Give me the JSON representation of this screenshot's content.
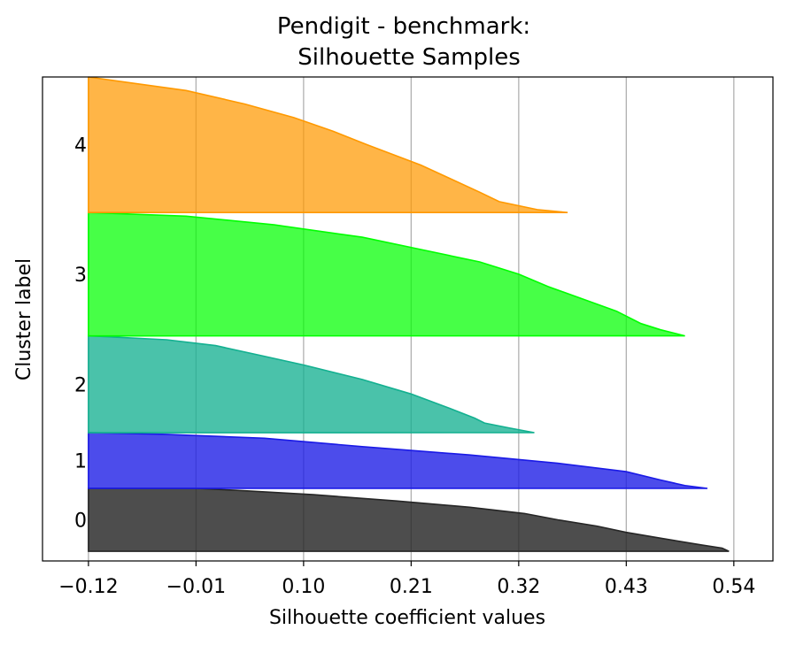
{
  "chart_data": {
    "type": "area",
    "title_line1": "Pendigit - benchmark:",
    "title_line2": "Silhouette Samples",
    "xlabel": "Silhouette coefficient values",
    "ylabel": "Cluster label",
    "x_ticks": [
      -0.12,
      -0.01,
      0.1,
      0.21,
      0.32,
      0.43,
      0.54
    ],
    "x_tick_labels": [
      "−0.12",
      "−0.01",
      "0.10",
      "0.21",
      "0.32",
      "0.43",
      "0.54"
    ],
    "xlim": [
      -0.167,
      0.58
    ],
    "grid": "x-axis vertical lines",
    "clusters": [
      {
        "label": "0",
        "color": "#262626",
        "fill_opacity": 0.82,
        "band": [
          0.02,
          0.15
        ],
        "profile": [
          [
            0,
            0.535
          ],
          [
            0.05,
            0.528
          ],
          [
            0.1,
            0.507
          ],
          [
            0.2,
            0.468
          ],
          [
            0.3,
            0.43
          ],
          [
            0.4,
            0.4
          ],
          [
            0.5,
            0.36
          ],
          [
            0.6,
            0.326
          ],
          [
            0.7,
            0.27
          ],
          [
            0.8,
            0.195
          ],
          [
            0.9,
            0.11
          ],
          [
            0.97,
            0.03
          ],
          [
            1,
            -0.01
          ]
        ]
      },
      {
        "label": "1",
        "color": "#1a1ae6",
        "fill_opacity": 0.78,
        "band": [
          0.15,
          0.265
        ],
        "profile": [
          [
            0,
            0.513
          ],
          [
            0.05,
            0.49
          ],
          [
            0.15,
            0.465
          ],
          [
            0.3,
            0.43
          ],
          [
            0.45,
            0.36
          ],
          [
            0.6,
            0.27
          ],
          [
            0.75,
            0.16
          ],
          [
            0.9,
            0.06
          ],
          [
            0.97,
            -0.04
          ],
          [
            1,
            -0.12
          ]
        ]
      },
      {
        "label": "2",
        "color": "#13b090",
        "fill_opacity": 0.77,
        "band": [
          0.265,
          0.465
        ],
        "profile": [
          [
            0,
            0.336
          ],
          [
            0.05,
            0.31
          ],
          [
            0.1,
            0.285
          ],
          [
            0.15,
            0.275
          ],
          [
            0.25,
            0.25
          ],
          [
            0.4,
            0.21
          ],
          [
            0.55,
            0.16
          ],
          [
            0.7,
            0.1
          ],
          [
            0.8,
            0.055
          ],
          [
            0.9,
            0.01
          ],
          [
            0.96,
            -0.04
          ],
          [
            1,
            -0.12
          ]
        ]
      },
      {
        "label": "3",
        "color": "#00ff00",
        "fill_opacity": 0.72,
        "band": [
          0.465,
          0.72
        ],
        "profile": [
          [
            0,
            0.49
          ],
          [
            0.05,
            0.465
          ],
          [
            0.1,
            0.445
          ],
          [
            0.2,
            0.42
          ],
          [
            0.3,
            0.385
          ],
          [
            0.4,
            0.35
          ],
          [
            0.5,
            0.32
          ],
          [
            0.6,
            0.28
          ],
          [
            0.7,
            0.22
          ],
          [
            0.8,
            0.16
          ],
          [
            0.9,
            0.07
          ],
          [
            0.97,
            -0.02
          ],
          [
            1,
            -0.12
          ]
        ]
      },
      {
        "label": "4",
        "color": "#ff9900",
        "fill_opacity": 0.72,
        "band": [
          0.72,
          1.0
        ],
        "profile": [
          [
            0,
            0.37
          ],
          [
            0.02,
            0.34
          ],
          [
            0.08,
            0.3
          ],
          [
            0.15,
            0.28
          ],
          [
            0.25,
            0.25
          ],
          [
            0.35,
            0.22
          ],
          [
            0.5,
            0.165
          ],
          [
            0.6,
            0.13
          ],
          [
            0.7,
            0.09
          ],
          [
            0.8,
            0.04
          ],
          [
            0.9,
            -0.02
          ],
          [
            1,
            -0.12
          ]
        ]
      }
    ]
  }
}
